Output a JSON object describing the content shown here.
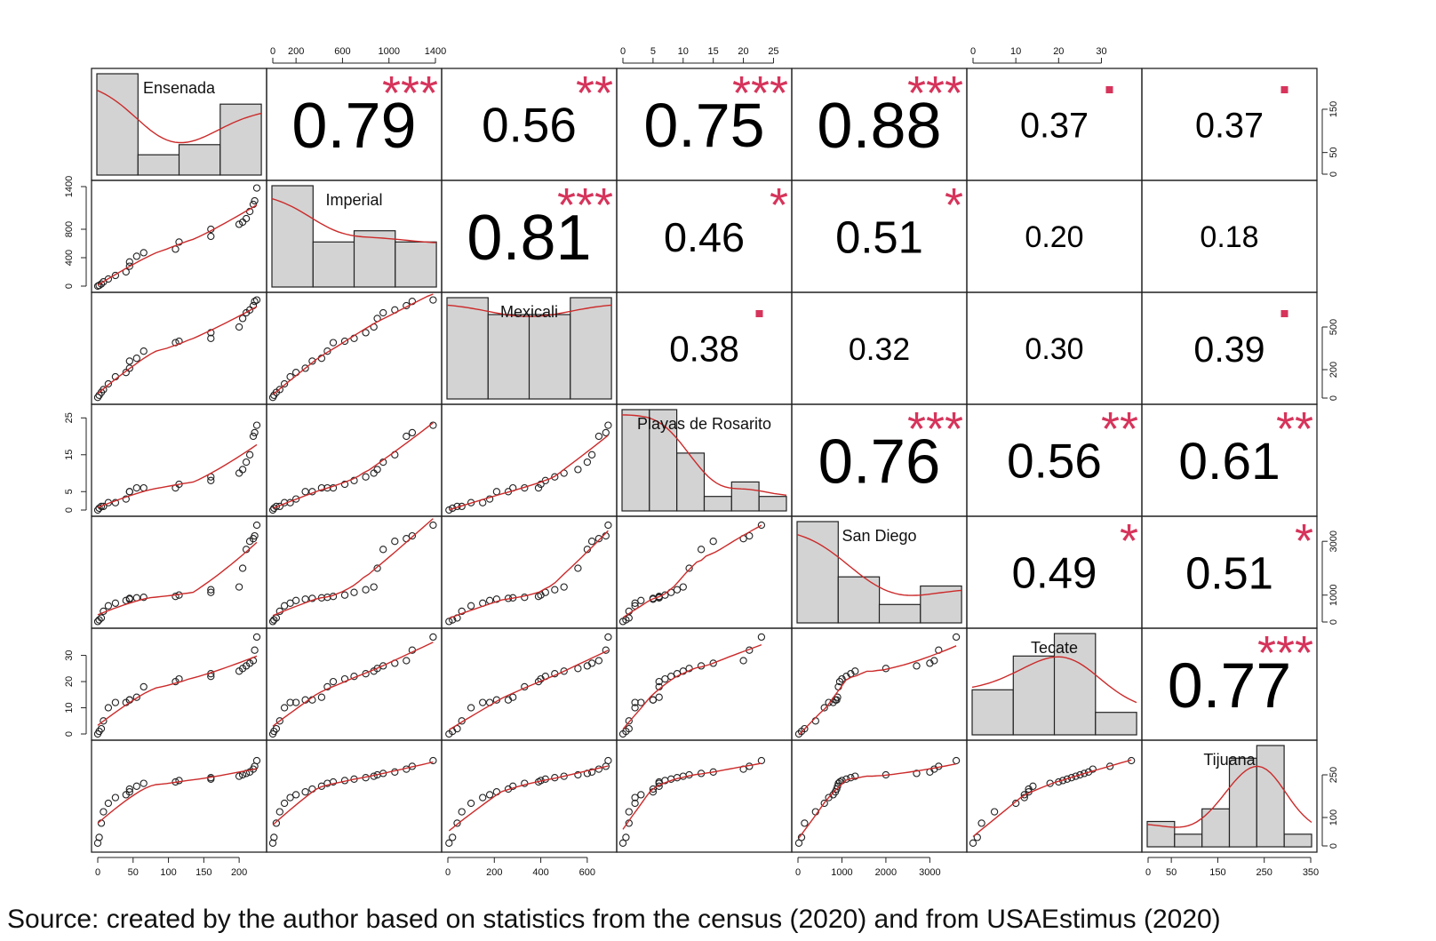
{
  "chart_data": {
    "type": "scatter",
    "title": "",
    "variables": [
      "Ensenada",
      "Imperial",
      "Mexicali",
      "Playas de Rosarito",
      "San Diego",
      "Tecate",
      "Tijuana"
    ],
    "correlations": {
      "matrix": [
        [
          null,
          0.79,
          0.56,
          0.75,
          0.88,
          0.37,
          0.37
        ],
        [
          null,
          null,
          0.81,
          0.46,
          0.51,
          0.2,
          0.18
        ],
        [
          null,
          null,
          null,
          0.38,
          0.32,
          0.3,
          0.39
        ],
        [
          null,
          null,
          null,
          null,
          0.76,
          0.56,
          0.61
        ],
        [
          null,
          null,
          null,
          null,
          null,
          0.49,
          0.51
        ],
        [
          null,
          null,
          null,
          null,
          null,
          null,
          0.77
        ],
        [
          null,
          null,
          null,
          null,
          null,
          null,
          null
        ]
      ],
      "labels": [
        [
          null,
          "0.79",
          "0.56",
          "0.75",
          "0.88",
          "0.37",
          "0.37"
        ],
        [
          null,
          null,
          "0.81",
          "0.46",
          "0.51",
          "0.20",
          "0.18"
        ],
        [
          null,
          null,
          null,
          "0.38",
          "0.32",
          "0.30",
          "0.39"
        ],
        [
          null,
          null,
          null,
          null,
          "0.76",
          "0.56",
          "0.61"
        ],
        [
          null,
          null,
          null,
          null,
          null,
          "0.49",
          "0.51"
        ],
        [
          null,
          null,
          null,
          null,
          null,
          null,
          "0.77"
        ],
        [
          null,
          null,
          null,
          null,
          null,
          null,
          null
        ]
      ],
      "significance": [
        [
          null,
          "***",
          "**",
          "***",
          "***",
          ".",
          "."
        ],
        [
          null,
          null,
          "***",
          "*",
          "*",
          "",
          ""
        ],
        [
          null,
          null,
          null,
          ".",
          "",
          "",
          "."
        ],
        [
          null,
          null,
          null,
          null,
          "***",
          "**",
          "**"
        ],
        [
          null,
          null,
          null,
          null,
          null,
          "*",
          "*"
        ],
        [
          null,
          null,
          null,
          null,
          null,
          null,
          "***"
        ],
        [
          null,
          null,
          null,
          null,
          null,
          null,
          null
        ]
      ]
    },
    "ranges": [
      [
        0,
        230
      ],
      [
        0,
        1400
      ],
      [
        0,
        700
      ],
      [
        0,
        27
      ],
      [
        0,
        3700
      ],
      [
        0,
        38
      ],
      [
        0,
        350
      ]
    ],
    "axis_ticks": {
      "top": {
        "1": [
          "0",
          "200",
          "600",
          "1000",
          "1400"
        ],
        "3": [
          "0",
          "5",
          "10",
          "15",
          "20",
          "25"
        ],
        "5": [
          "0",
          "10",
          "20",
          "30"
        ]
      },
      "bottom": {
        "0": [
          "0",
          "50",
          "100",
          "150",
          "200"
        ],
        "2": [
          "0",
          "200",
          "400",
          "600"
        ],
        "4": [
          "0",
          "1000",
          "2000",
          "3000"
        ],
        "6": [
          "0",
          "50",
          "150",
          "250",
          "350"
        ]
      },
      "left": {
        "1": [
          "0",
          "400",
          "800",
          "1400"
        ],
        "3": [
          "0",
          "5",
          "15",
          "25"
        ],
        "5": [
          "0",
          "10",
          "20",
          "30"
        ]
      },
      "right": {
        "0": [
          "0",
          "50",
          "150"
        ],
        "2": [
          "0",
          "200",
          "500"
        ],
        "4": [
          "0",
          "1000",
          "3000"
        ],
        "6": [
          "0",
          "100",
          "250"
        ]
      }
    },
    "tick_values": {
      "top": {
        "1": [
          0,
          200,
          600,
          1000,
          1400
        ],
        "3": [
          0,
          5,
          10,
          15,
          20,
          25
        ],
        "5": [
          0,
          10,
          20,
          30
        ]
      },
      "bottom": {
        "0": [
          0,
          50,
          100,
          150,
          200
        ],
        "2": [
          0,
          200,
          400,
          600
        ],
        "4": [
          0,
          1000,
          2000,
          3000
        ],
        "6": [
          0,
          50,
          150,
          250,
          350
        ]
      },
      "left": {
        "1": [
          0,
          400,
          800,
          1400
        ],
        "3": [
          0,
          5,
          15,
          25
        ],
        "5": [
          0,
          10,
          20,
          30
        ]
      },
      "right": {
        "0": [
          0,
          50,
          150
        ],
        "2": [
          0,
          200,
          500
        ],
        "4": [
          0,
          1000,
          3000
        ],
        "6": [
          0,
          100,
          250
        ]
      }
    },
    "observations": {
      "Ensenada": [
        0,
        2,
        5,
        8,
        15,
        25,
        40,
        45,
        45,
        55,
        65,
        110,
        115,
        160,
        160,
        200,
        205,
        210,
        215,
        220,
        222,
        225
      ],
      "Imperial": [
        0,
        10,
        30,
        60,
        100,
        150,
        200,
        280,
        340,
        420,
        470,
        520,
        620,
        700,
        800,
        870,
        900,
        950,
        1050,
        1150,
        1200,
        1380
      ],
      "Mexicali": [
        5,
        20,
        40,
        60,
        100,
        150,
        180,
        210,
        260,
        280,
        330,
        390,
        400,
        420,
        460,
        500,
        560,
        600,
        620,
        650,
        680,
        690
      ],
      "Playas de Rosarito": [
        0,
        0.5,
        1,
        1,
        2,
        2,
        3,
        5,
        5,
        6,
        6,
        6,
        7,
        8,
        9,
        10,
        11,
        13,
        15,
        20,
        21,
        23
      ],
      "San Diego": [
        20,
        80,
        150,
        400,
        600,
        700,
        800,
        850,
        880,
        900,
        920,
        950,
        1000,
        1100,
        1200,
        1300,
        2000,
        2700,
        3000,
        3100,
        3200,
        3600
      ],
      "Tecate": [
        0,
        1,
        2,
        5,
        10,
        12,
        12,
        13,
        13,
        14,
        18,
        20,
        21,
        22,
        23,
        24,
        25,
        26,
        27,
        28,
        32,
        37
      ],
      "Tijuana": [
        10,
        30,
        80,
        120,
        150,
        170,
        180,
        190,
        200,
        210,
        220,
        225,
        230,
        235,
        240,
        245,
        250,
        255,
        260,
        270,
        280,
        300
      ]
    }
  },
  "caption": "Source: created by the author based on statistics from the census (2020) and from USAEstimus (2020)"
}
